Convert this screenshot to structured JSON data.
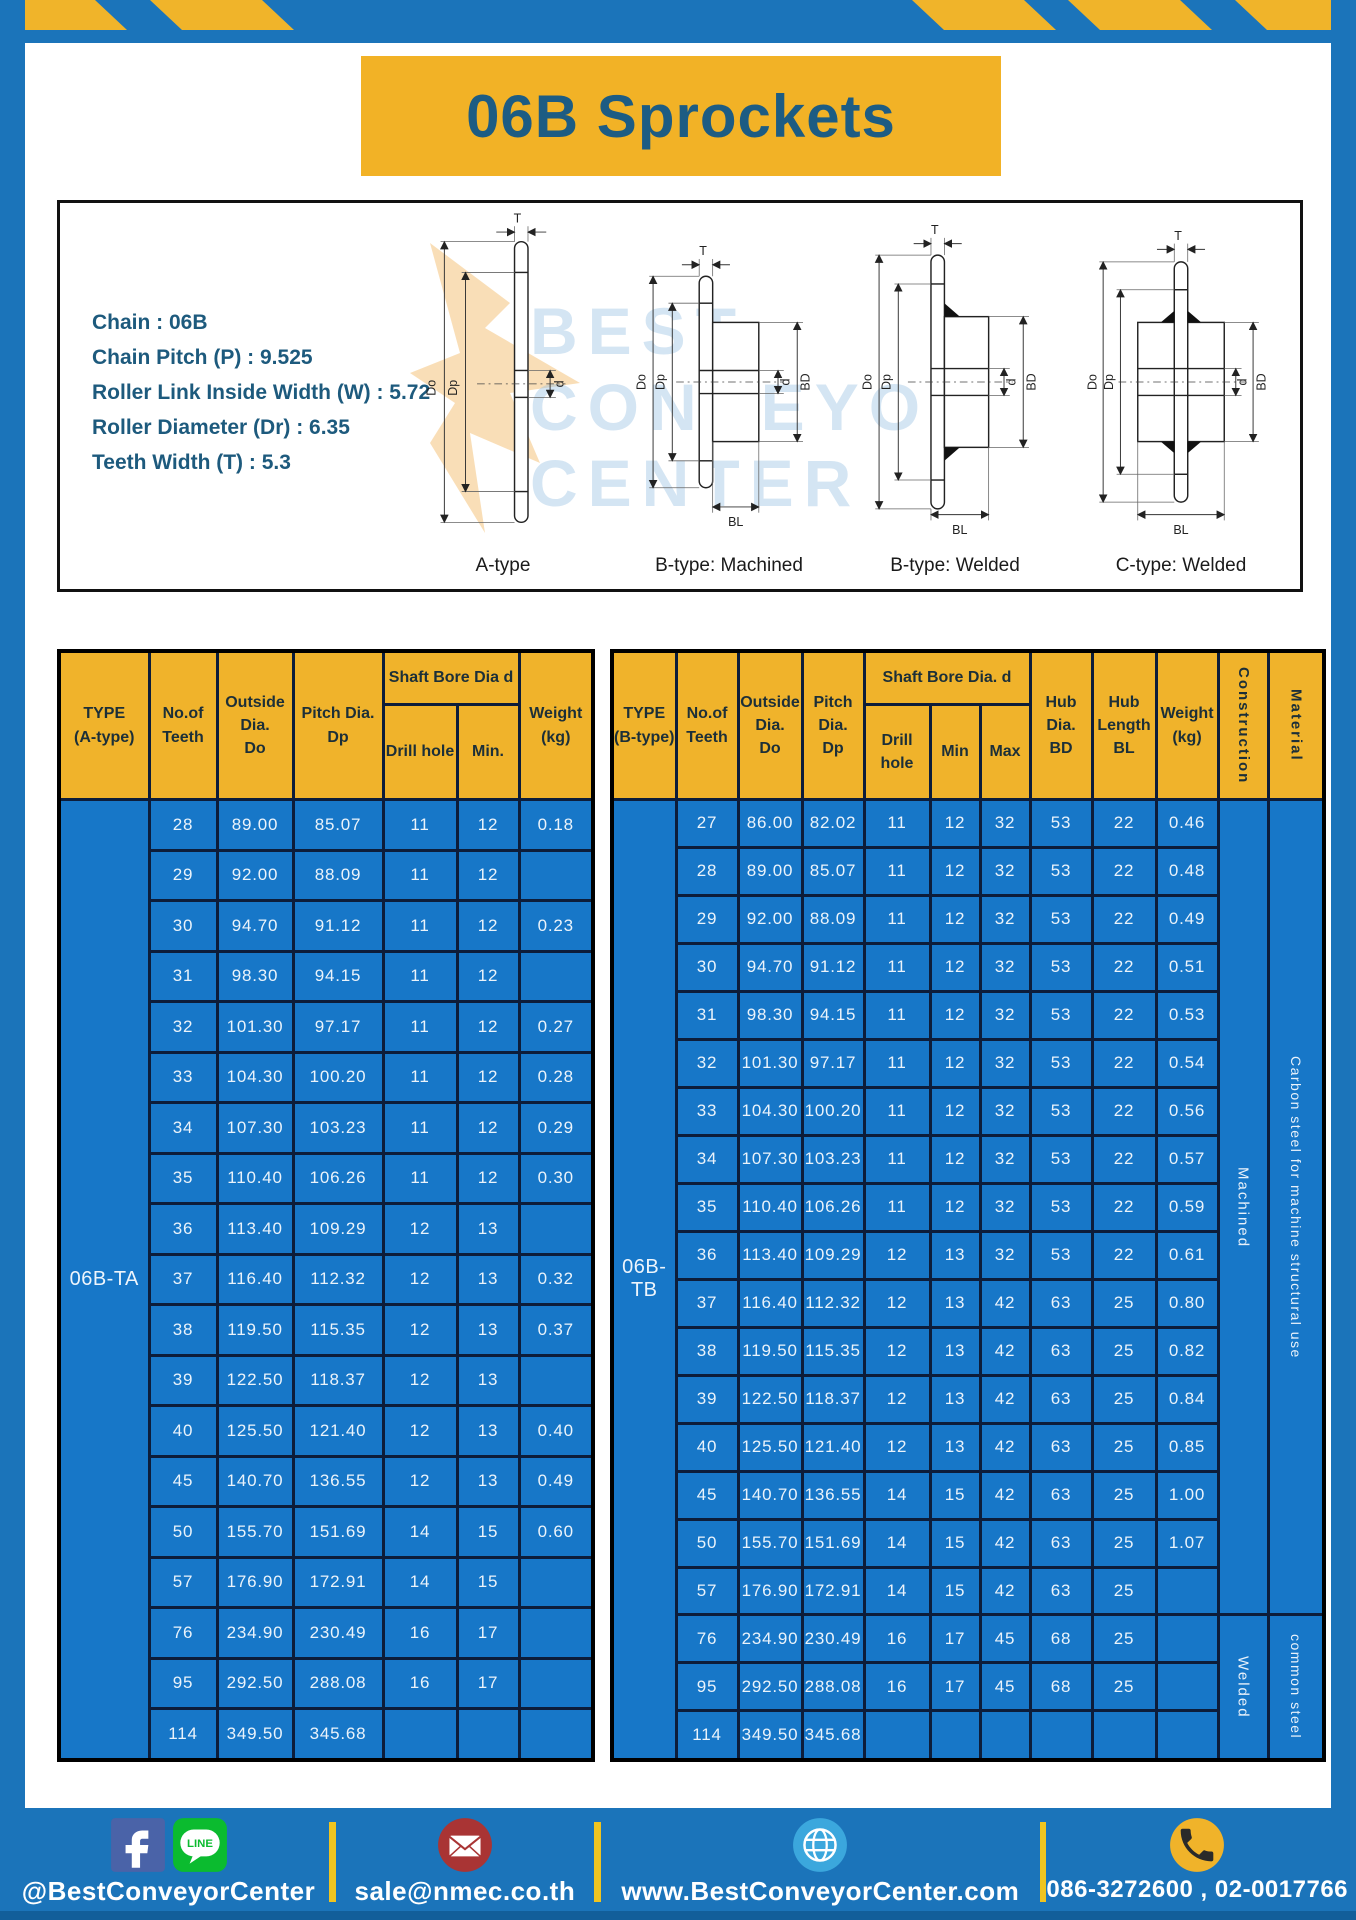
{
  "page": {
    "title": "06B Sprockets"
  },
  "colors": {
    "frame_blue": "#1b74ba",
    "stripe_yellow": "#f0b42a",
    "title_yellow": "#f2b226",
    "table_blue": "#1777c8",
    "header_yellow": "#f0b32b",
    "title_text": "#1d5c83",
    "grid_line": "#0d1d3a"
  },
  "specs": {
    "lines": [
      "Chain : 06B",
      "Chain Pitch (P) : 9.525",
      "Roller Link Inside Width (W) : 5.72",
      "Roller Diameter (Dr) : 6.35",
      "Teeth Width (T) : 5.3"
    ]
  },
  "diagram": {
    "types": [
      "A-type",
      "B-type: Machined",
      "B-type: Welded",
      "C-type: Welded"
    ],
    "dims": {
      "t": "T",
      "do": "Do",
      "dp": "Dp",
      "d": "d",
      "bd": "BD",
      "bl": "BL"
    },
    "watermark": "BEST\nCONVEYOR\nCENTER"
  },
  "table_a": {
    "type_label": "06B-TA",
    "headers": {
      "type": "TYPE\n(A-type)",
      "teeth": "No.of\nTeeth",
      "outside": "Outside\nDia.\nDo",
      "pitch": "Pitch Dia.\nDp",
      "shaft": "Shaft Bore Dia d",
      "drill": "Drill hole",
      "min": "Min.",
      "weight": "Weight\n(kg)"
    },
    "rows": [
      [
        "28",
        "89.00",
        "85.07",
        "11",
        "12",
        "0.18"
      ],
      [
        "29",
        "92.00",
        "88.09",
        "11",
        "12",
        ""
      ],
      [
        "30",
        "94.70",
        "91.12",
        "11",
        "12",
        "0.23"
      ],
      [
        "31",
        "98.30",
        "94.15",
        "11",
        "12",
        ""
      ],
      [
        "32",
        "101.30",
        "97.17",
        "11",
        "12",
        "0.27"
      ],
      [
        "33",
        "104.30",
        "100.20",
        "11",
        "12",
        "0.28"
      ],
      [
        "34",
        "107.30",
        "103.23",
        "11",
        "12",
        "0.29"
      ],
      [
        "35",
        "110.40",
        "106.26",
        "11",
        "12",
        "0.30"
      ],
      [
        "36",
        "113.40",
        "109.29",
        "12",
        "13",
        ""
      ],
      [
        "37",
        "116.40",
        "112.32",
        "12",
        "13",
        "0.32"
      ],
      [
        "38",
        "119.50",
        "115.35",
        "12",
        "13",
        "0.37"
      ],
      [
        "39",
        "122.50",
        "118.37",
        "12",
        "13",
        ""
      ],
      [
        "40",
        "125.50",
        "121.40",
        "12",
        "13",
        "0.40"
      ],
      [
        "45",
        "140.70",
        "136.55",
        "12",
        "13",
        "0.49"
      ],
      [
        "50",
        "155.70",
        "151.69",
        "14",
        "15",
        "0.60"
      ],
      [
        "57",
        "176.90",
        "172.91",
        "14",
        "15",
        ""
      ],
      [
        "76",
        "234.90",
        "230.49",
        "16",
        "17",
        ""
      ],
      [
        "95",
        "292.50",
        "288.08",
        "16",
        "17",
        ""
      ],
      [
        "114",
        "349.50",
        "345.68",
        "",
        "",
        ""
      ]
    ]
  },
  "table_b": {
    "type_label": "06B-TB",
    "headers": {
      "type": "TYPE\n(B-type)",
      "teeth": "No.of\nTeeth",
      "outside": "Outside\nDia.\nDo",
      "pitch": "Pitch\nDia.\nDp",
      "shaft": "Shaft Bore Dia. d",
      "drill": "Drill hole",
      "min": "Min",
      "max": "Max",
      "hub_dia": "Hub\nDia.\nBD",
      "hub_len": "Hub\nLength\nBL",
      "weight": "Weight\n(kg)",
      "construction": "Construction",
      "material": "Material"
    },
    "rows": [
      [
        "27",
        "86.00",
        "82.02",
        "11",
        "12",
        "32",
        "53",
        "22",
        "0.46"
      ],
      [
        "28",
        "89.00",
        "85.07",
        "11",
        "12",
        "32",
        "53",
        "22",
        "0.48"
      ],
      [
        "29",
        "92.00",
        "88.09",
        "11",
        "12",
        "32",
        "53",
        "22",
        "0.49"
      ],
      [
        "30",
        "94.70",
        "91.12",
        "11",
        "12",
        "32",
        "53",
        "22",
        "0.51"
      ],
      [
        "31",
        "98.30",
        "94.15",
        "11",
        "12",
        "32",
        "53",
        "22",
        "0.53"
      ],
      [
        "32",
        "101.30",
        "97.17",
        "11",
        "12",
        "32",
        "53",
        "22",
        "0.54"
      ],
      [
        "33",
        "104.30",
        "100.20",
        "11",
        "12",
        "32",
        "53",
        "22",
        "0.56"
      ],
      [
        "34",
        "107.30",
        "103.23",
        "11",
        "12",
        "32",
        "53",
        "22",
        "0.57"
      ],
      [
        "35",
        "110.40",
        "106.26",
        "11",
        "12",
        "32",
        "53",
        "22",
        "0.59"
      ],
      [
        "36",
        "113.40",
        "109.29",
        "12",
        "13",
        "32",
        "53",
        "22",
        "0.61"
      ],
      [
        "37",
        "116.40",
        "112.32",
        "12",
        "13",
        "42",
        "63",
        "25",
        "0.80"
      ],
      [
        "38",
        "119.50",
        "115.35",
        "12",
        "13",
        "42",
        "63",
        "25",
        "0.82"
      ],
      [
        "39",
        "122.50",
        "118.37",
        "12",
        "13",
        "42",
        "63",
        "25",
        "0.84"
      ],
      [
        "40",
        "125.50",
        "121.40",
        "12",
        "13",
        "42",
        "63",
        "25",
        "0.85"
      ],
      [
        "45",
        "140.70",
        "136.55",
        "14",
        "15",
        "42",
        "63",
        "25",
        "1.00"
      ],
      [
        "50",
        "155.70",
        "151.69",
        "14",
        "15",
        "42",
        "63",
        "25",
        "1.07"
      ],
      [
        "57",
        "176.90",
        "172.91",
        "14",
        "15",
        "42",
        "63",
        "25",
        ""
      ],
      [
        "76",
        "234.90",
        "230.49",
        "16",
        "17",
        "45",
        "68",
        "25",
        ""
      ],
      [
        "95",
        "292.50",
        "288.08",
        "16",
        "17",
        "45",
        "68",
        "25",
        ""
      ],
      [
        "114",
        "349.50",
        "345.68",
        "",
        "",
        "",
        "",
        "",
        ""
      ]
    ],
    "construction": [
      {
        "label": "Machined",
        "span": 17
      },
      {
        "label": "Welded",
        "span": 3
      }
    ],
    "material": [
      {
        "label": "Carbon steel for machine structural use",
        "span": 17
      },
      {
        "label": "common steel",
        "span": 3
      }
    ]
  },
  "footer": {
    "social": "@BestConveyorCenter",
    "email": "sale@nmec.co.th",
    "website": "www.BestConveyorCenter.com",
    "phone": "086-3272600 , 02-0017766",
    "icons": [
      "facebook-icon",
      "line-icon",
      "email-icon",
      "globe-icon",
      "phone-icon"
    ],
    "line_icon_text": "LINE"
  }
}
